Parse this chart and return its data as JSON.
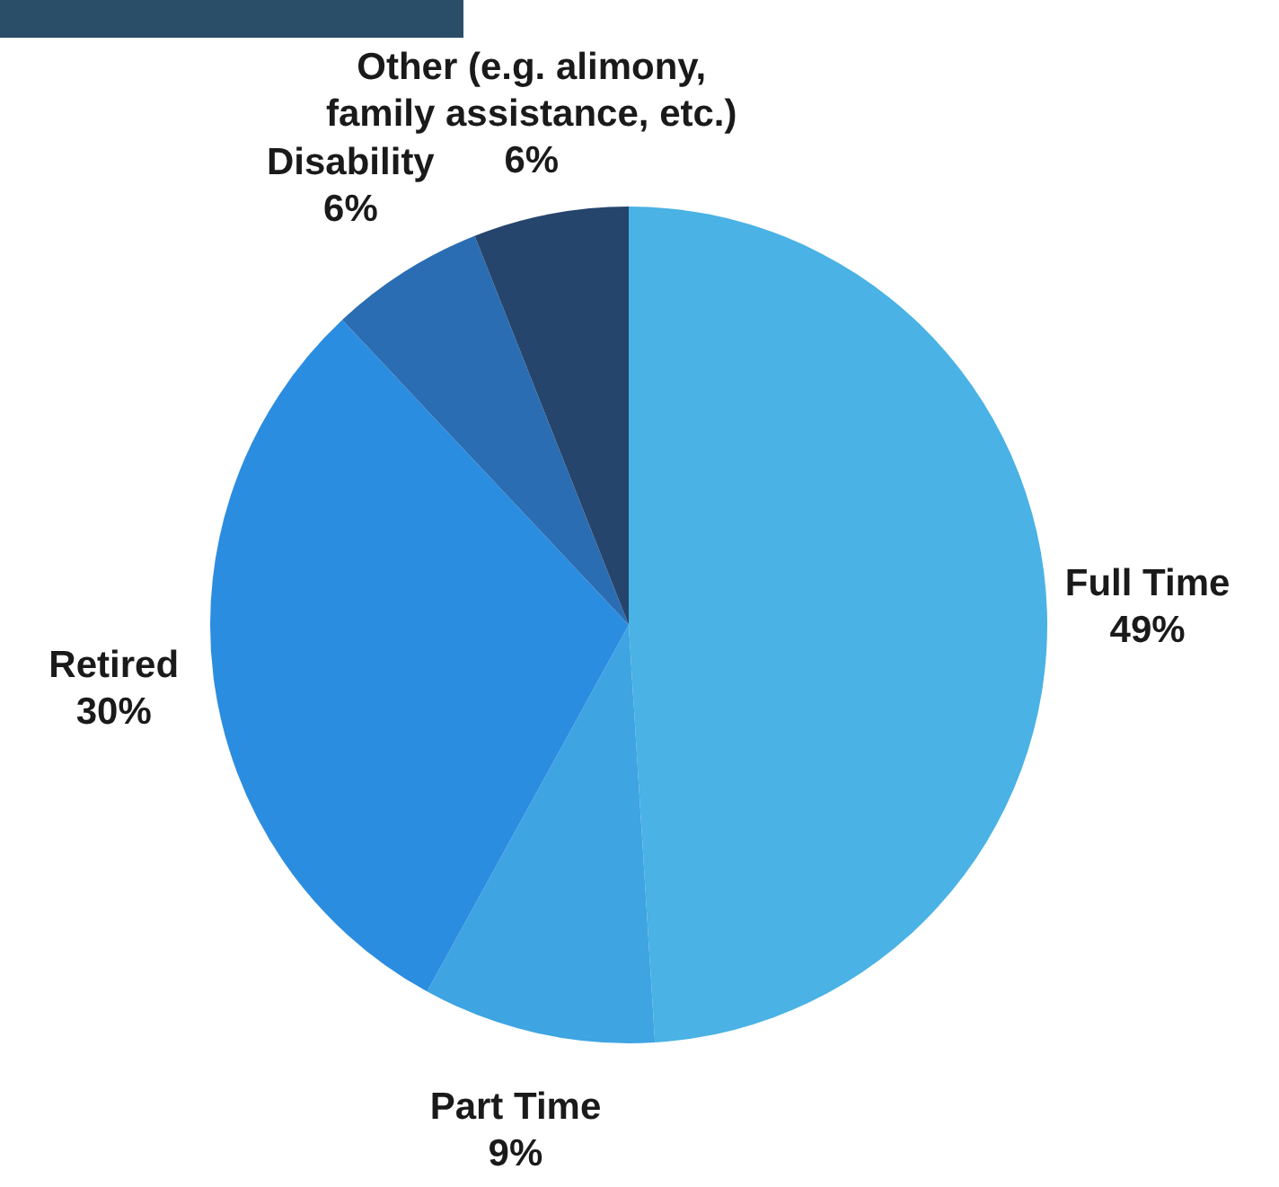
{
  "chart_data": {
    "type": "pie",
    "categories": [
      "Full Time",
      "Part Time",
      "Retired",
      "Disability",
      "Other (e.g. alimony, family assistance, etc.)"
    ],
    "values": [
      49,
      9,
      30,
      6,
      6
    ],
    "colors": [
      "#4ab2e4",
      "#3ea4e2",
      "#2b8de0",
      "#2a6db2",
      "#26456d"
    ],
    "value_labels": [
      "49%",
      "9%",
      "30%",
      "6%",
      "6%"
    ],
    "legend": false
  }
}
